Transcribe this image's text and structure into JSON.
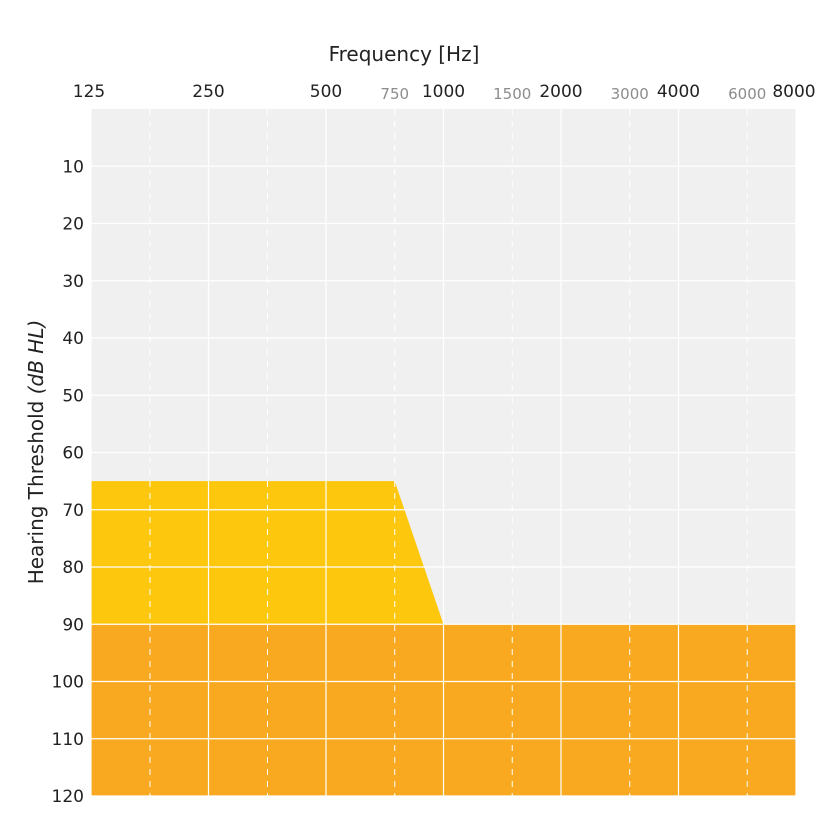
{
  "chart_data": {
    "type": "area",
    "title": "",
    "xlabel": "Frequency [Hz]",
    "ylabel": "Hearing Threshold",
    "ylabel_unit": "(dB HL)",
    "x_scale": "log",
    "x_major_ticks": [
      "125",
      "250",
      "500",
      "1000",
      "2000",
      "4000",
      "8000"
    ],
    "x_minor_ticks": [
      "750",
      "1500",
      "3000",
      "6000"
    ],
    "y_ticks": [
      "10",
      "20",
      "30",
      "40",
      "50",
      "60",
      "70",
      "80",
      "90",
      "100",
      "110",
      "120"
    ],
    "ylim": [
      0,
      120
    ],
    "y_inverted": true,
    "grid": true,
    "series": [
      {
        "color": "#fcc70c",
        "points": [
          [
            125,
            65
          ],
          [
            750,
            65
          ],
          [
            1000,
            90
          ],
          [
            8000,
            90
          ]
        ],
        "fill_to": 120
      },
      {
        "color": "#f8a91f",
        "points": [
          [
            125,
            90
          ],
          [
            8000,
            90
          ]
        ],
        "fill_to": 120
      }
    ],
    "plot_background": "#f0f0f0",
    "grid_color": "#ffffff"
  }
}
